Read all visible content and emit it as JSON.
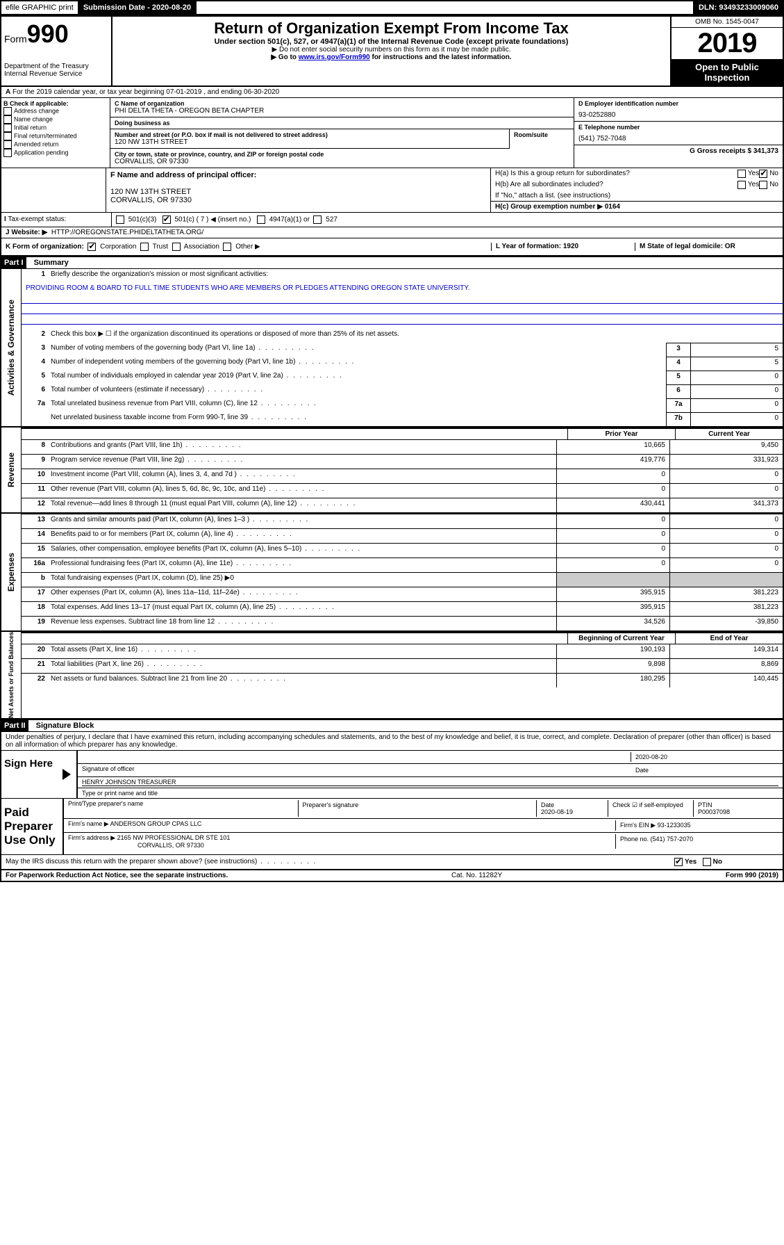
{
  "top_bar": {
    "efile": "efile GRAPHIC print",
    "submission_label": "Submission Date - 2020-08-20",
    "dln": "DLN: 93493233009060"
  },
  "header": {
    "form_label": "Form",
    "form_number": "990",
    "dept": "Department of the Treasury",
    "irs": "Internal Revenue Service",
    "title": "Return of Organization Exempt From Income Tax",
    "subtitle": "Under section 501(c), 527, or 4947(a)(1) of the Internal Revenue Code (except private foundations)",
    "note1": "▶ Do not enter social security numbers on this form as it may be made public.",
    "note2_pre": "▶ Go to ",
    "note2_link": "www.irs.gov/Form990",
    "note2_post": " for instructions and the latest information.",
    "omb": "OMB No. 1545-0047",
    "year": "2019",
    "open_public": "Open to Public Inspection"
  },
  "line_a": "For the 2019 calendar year, or tax year beginning 07-01-2019     , and ending 06-30-2020",
  "section_b": {
    "label": "B Check if applicable:",
    "items": [
      "Address change",
      "Name change",
      "Initial return",
      "Final return/terminated",
      "Amended return",
      "Application pending"
    ]
  },
  "section_c": {
    "name_label": "C Name of organization",
    "name": "PHI DELTA THETA - OREGON BETA CHAPTER",
    "dba_label": "Doing business as",
    "dba": "",
    "street_label": "Number and street (or P.O. box if mail is not delivered to street address)",
    "room_label": "Room/suite",
    "street": "120 NW 13TH STREET",
    "city_label": "City or town, state or province, country, and ZIP or foreign postal code",
    "city": "CORVALLIS, OR  97330"
  },
  "section_d": {
    "ein_label": "D Employer identification number",
    "ein": "93-0252880",
    "phone_label": "E Telephone number",
    "phone": "(541) 752-7048",
    "gross_label": "G Gross receipts $ 341,373"
  },
  "section_f": {
    "label": "F  Name and address of principal officer:",
    "line1": "120 NW 13TH STREET",
    "line2": "CORVALLIS, OR  97330"
  },
  "section_h": {
    "h_a": "H(a)  Is this a group return for subordinates?",
    "h_b": "H(b)  Are all subordinates included?",
    "h_b_note": "If \"No,\" attach a list. (see instructions)",
    "h_c": "H(c)  Group exemption number ▶   0164"
  },
  "tax_exempt": {
    "label": "Tax-exempt status:",
    "opt1": "501(c)(3)",
    "opt2": "501(c) ( 7 ) ◀ (insert no.)",
    "opt3": "4947(a)(1) or",
    "opt4": "527"
  },
  "website": {
    "label": "J    Website: ▶",
    "url": "HTTP://OREGONSTATE.PHIDELTATHETA.ORG/"
  },
  "line_k": "K Form of organization:",
  "k_opts": [
    "Corporation",
    "Trust",
    "Association",
    "Other ▶"
  ],
  "line_l": "L Year of formation: 1920",
  "line_m": "M State of legal domicile: OR",
  "part1": {
    "header": "Part I",
    "title": "Summary",
    "q1": "Briefly describe the organization's mission or most significant activities:",
    "mission": "PROVIDING ROOM & BOARD TO FULL TIME STUDENTS WHO ARE MEMBERS OR PLEDGES ATTENDING OREGON STATE UNIVERSITY.",
    "q2": "Check this box ▶ ☐  if the organization discontinued its operations or disposed of more than 25% of its net assets.",
    "governance_label": "Activities & Governance",
    "revenue_label": "Revenue",
    "expenses_label": "Expenses",
    "netassets_label": "Net Assets or Fund Balances",
    "gov_rows": [
      {
        "n": "3",
        "d": "Number of voting members of the governing body (Part VI, line 1a)",
        "box": "3",
        "v": "5"
      },
      {
        "n": "4",
        "d": "Number of independent voting members of the governing body (Part VI, line 1b)",
        "box": "4",
        "v": "5"
      },
      {
        "n": "5",
        "d": "Total number of individuals employed in calendar year 2019 (Part V, line 2a)",
        "box": "5",
        "v": "0"
      },
      {
        "n": "6",
        "d": "Total number of volunteers (estimate if necessary)",
        "box": "6",
        "v": "0"
      },
      {
        "n": "7a",
        "d": "Total unrelated business revenue from Part VIII, column (C), line 12",
        "box": "7a",
        "v": "0"
      },
      {
        "n": "",
        "d": "Net unrelated business taxable income from Form 990-T, line 39",
        "box": "7b",
        "v": "0"
      }
    ],
    "col_prior": "Prior Year",
    "col_current": "Current Year",
    "col_beginning": "Beginning of Current Year",
    "col_end": "End of Year",
    "rev_rows": [
      {
        "n": "8",
        "d": "Contributions and grants (Part VIII, line 1h)",
        "p": "10,665",
        "c": "9,450"
      },
      {
        "n": "9",
        "d": "Program service revenue (Part VIII, line 2g)",
        "p": "419,776",
        "c": "331,923"
      },
      {
        "n": "10",
        "d": "Investment income (Part VIII, column (A), lines 3, 4, and 7d )",
        "p": "0",
        "c": "0"
      },
      {
        "n": "11",
        "d": "Other revenue (Part VIII, column (A), lines 5, 6d, 8c, 9c, 10c, and 11e)",
        "p": "0",
        "c": "0"
      },
      {
        "n": "12",
        "d": "Total revenue—add lines 8 through 11 (must equal Part VIII, column (A), line 12)",
        "p": "430,441",
        "c": "341,373"
      }
    ],
    "exp_rows": [
      {
        "n": "13",
        "d": "Grants and similar amounts paid (Part IX, column (A), lines 1–3 )",
        "p": "0",
        "c": "0"
      },
      {
        "n": "14",
        "d": "Benefits paid to or for members (Part IX, column (A), line 4)",
        "p": "0",
        "c": "0"
      },
      {
        "n": "15",
        "d": "Salaries, other compensation, employee benefits (Part IX, column (A), lines 5–10)",
        "p": "0",
        "c": "0"
      },
      {
        "n": "16a",
        "d": "Professional fundraising fees (Part IX, column (A), line 11e)",
        "p": "0",
        "c": "0"
      },
      {
        "n": "b",
        "d": "Total fundraising expenses (Part IX, column (D), line 25) ▶0",
        "p": "",
        "c": ""
      },
      {
        "n": "17",
        "d": "Other expenses (Part IX, column (A), lines 11a–11d, 11f–24e)",
        "p": "395,915",
        "c": "381,223"
      },
      {
        "n": "18",
        "d": "Total expenses. Add lines 13–17 (must equal Part IX, column (A), line 25)",
        "p": "395,915",
        "c": "381,223"
      },
      {
        "n": "19",
        "d": "Revenue less expenses. Subtract line 18 from line 12",
        "p": "34,526",
        "c": "-39,850"
      }
    ],
    "net_rows": [
      {
        "n": "20",
        "d": "Total assets (Part X, line 16)",
        "p": "190,193",
        "c": "149,314"
      },
      {
        "n": "21",
        "d": "Total liabilities (Part X, line 26)",
        "p": "9,898",
        "c": "8,869"
      },
      {
        "n": "22",
        "d": "Net assets or fund balances. Subtract line 21 from line 20",
        "p": "180,295",
        "c": "140,445"
      }
    ]
  },
  "part2": {
    "header": "Part II",
    "title": "Signature Block",
    "declaration": "Under penalties of perjury, I declare that I have examined this return, including accompanying schedules and statements, and to the best of my knowledge and belief, it is true, correct, and complete. Declaration of preparer (other than officer) is based on all information of which preparer has any knowledge."
  },
  "sign": {
    "label": "Sign Here",
    "date": "2020-08-20",
    "sig_label": "Signature of officer",
    "date_label": "Date",
    "name": "HENRY JOHNSON  TREASURER",
    "name_label": "Type or print name and title"
  },
  "paid": {
    "label": "Paid Preparer Use Only",
    "h1": "Print/Type preparer's name",
    "h2": "Preparer's signature",
    "h3_label": "Date",
    "h3": "2020-08-19",
    "h4": "Check ☑ if self-employed",
    "h5_label": "PTIN",
    "h5": "P00037098",
    "firm_name_label": "Firm's name      ▶",
    "firm_name": "ANDERSON GROUP CPAS LLC",
    "firm_ein": "Firm's EIN ▶ 93-1233035",
    "firm_addr_label": "Firm's address ▶",
    "firm_addr1": "2165 NW PROFESSIONAL DR STE 101",
    "firm_addr2": "CORVALLIS, OR  97330",
    "firm_phone": "Phone no. (541) 757-2070"
  },
  "discuss": "May the IRS discuss this return with the preparer shown above? (see instructions)",
  "footer": {
    "left": "For Paperwork Reduction Act Notice, see the separate instructions.",
    "mid": "Cat. No. 11282Y",
    "right": "Form 990 (2019)"
  },
  "yes": "Yes",
  "no": "No"
}
